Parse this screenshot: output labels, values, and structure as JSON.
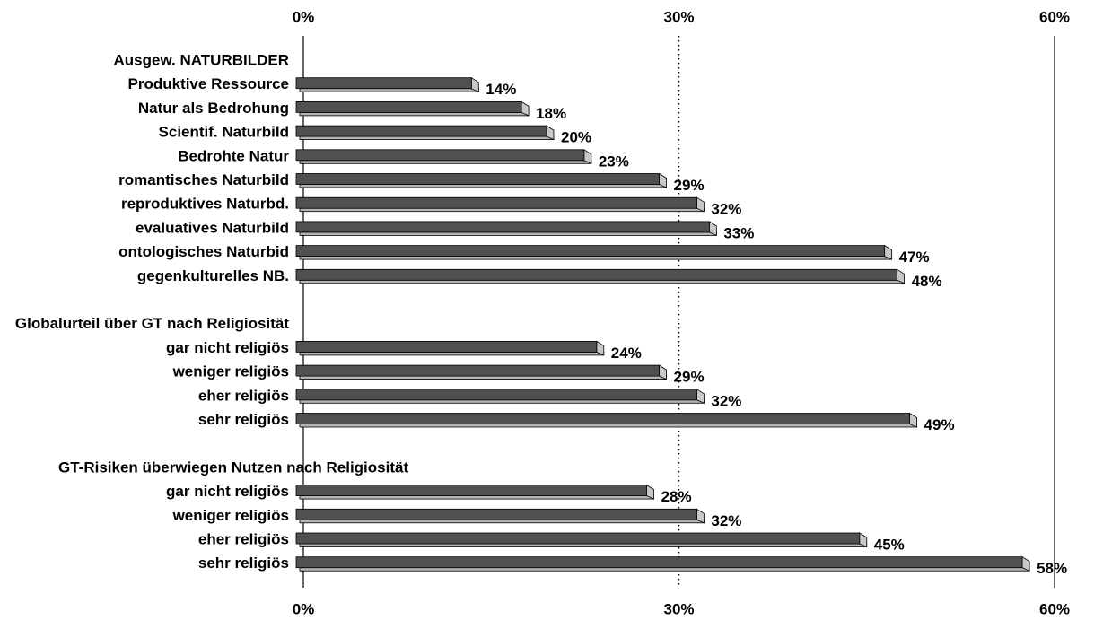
{
  "chart_data": {
    "type": "bar",
    "orientation": "horizontal",
    "categories": [
      "Ausgew. NATURBILDER",
      "Produktive Ressource",
      "Natur als Bedrohung",
      "Scientif. Naturbild",
      "Bedrohte Natur",
      "romantisches Naturbild",
      "reproduktives Naturbd.",
      "evaluatives Naturbild",
      "ontologisches Naturbid",
      "gegenkulturelles NB.",
      null,
      "Globalurteil über GT nach Religiosität",
      "gar nicht religiös",
      "weniger religiös",
      "eher religiös",
      "sehr religiös",
      null,
      "GT-Risiken überwiegen Nutzen nach Religiosität",
      "gar nicht religiös",
      "weniger religiös",
      "eher religiös",
      "sehr religiös"
    ],
    "values": [
      null,
      14,
      18,
      20,
      23,
      29,
      32,
      33,
      47,
      48,
      null,
      null,
      24,
      29,
      32,
      49,
      null,
      null,
      28,
      32,
      45,
      58
    ],
    "value_labels": [
      null,
      "14%",
      "18%",
      "20%",
      "23%",
      "29%",
      "32%",
      "33%",
      "47%",
      "48%",
      null,
      null,
      "24%",
      "29%",
      "32%",
      "49%",
      null,
      null,
      "28%",
      "32%",
      "45%",
      "58%"
    ],
    "color": "#505050",
    "xlim": [
      0,
      60
    ],
    "xticks": [
      {
        "value": 0,
        "label": "0%"
      },
      {
        "value": 30,
        "label": "30%"
      },
      {
        "value": 60,
        "label": "60%"
      }
    ],
    "grid": true
  }
}
